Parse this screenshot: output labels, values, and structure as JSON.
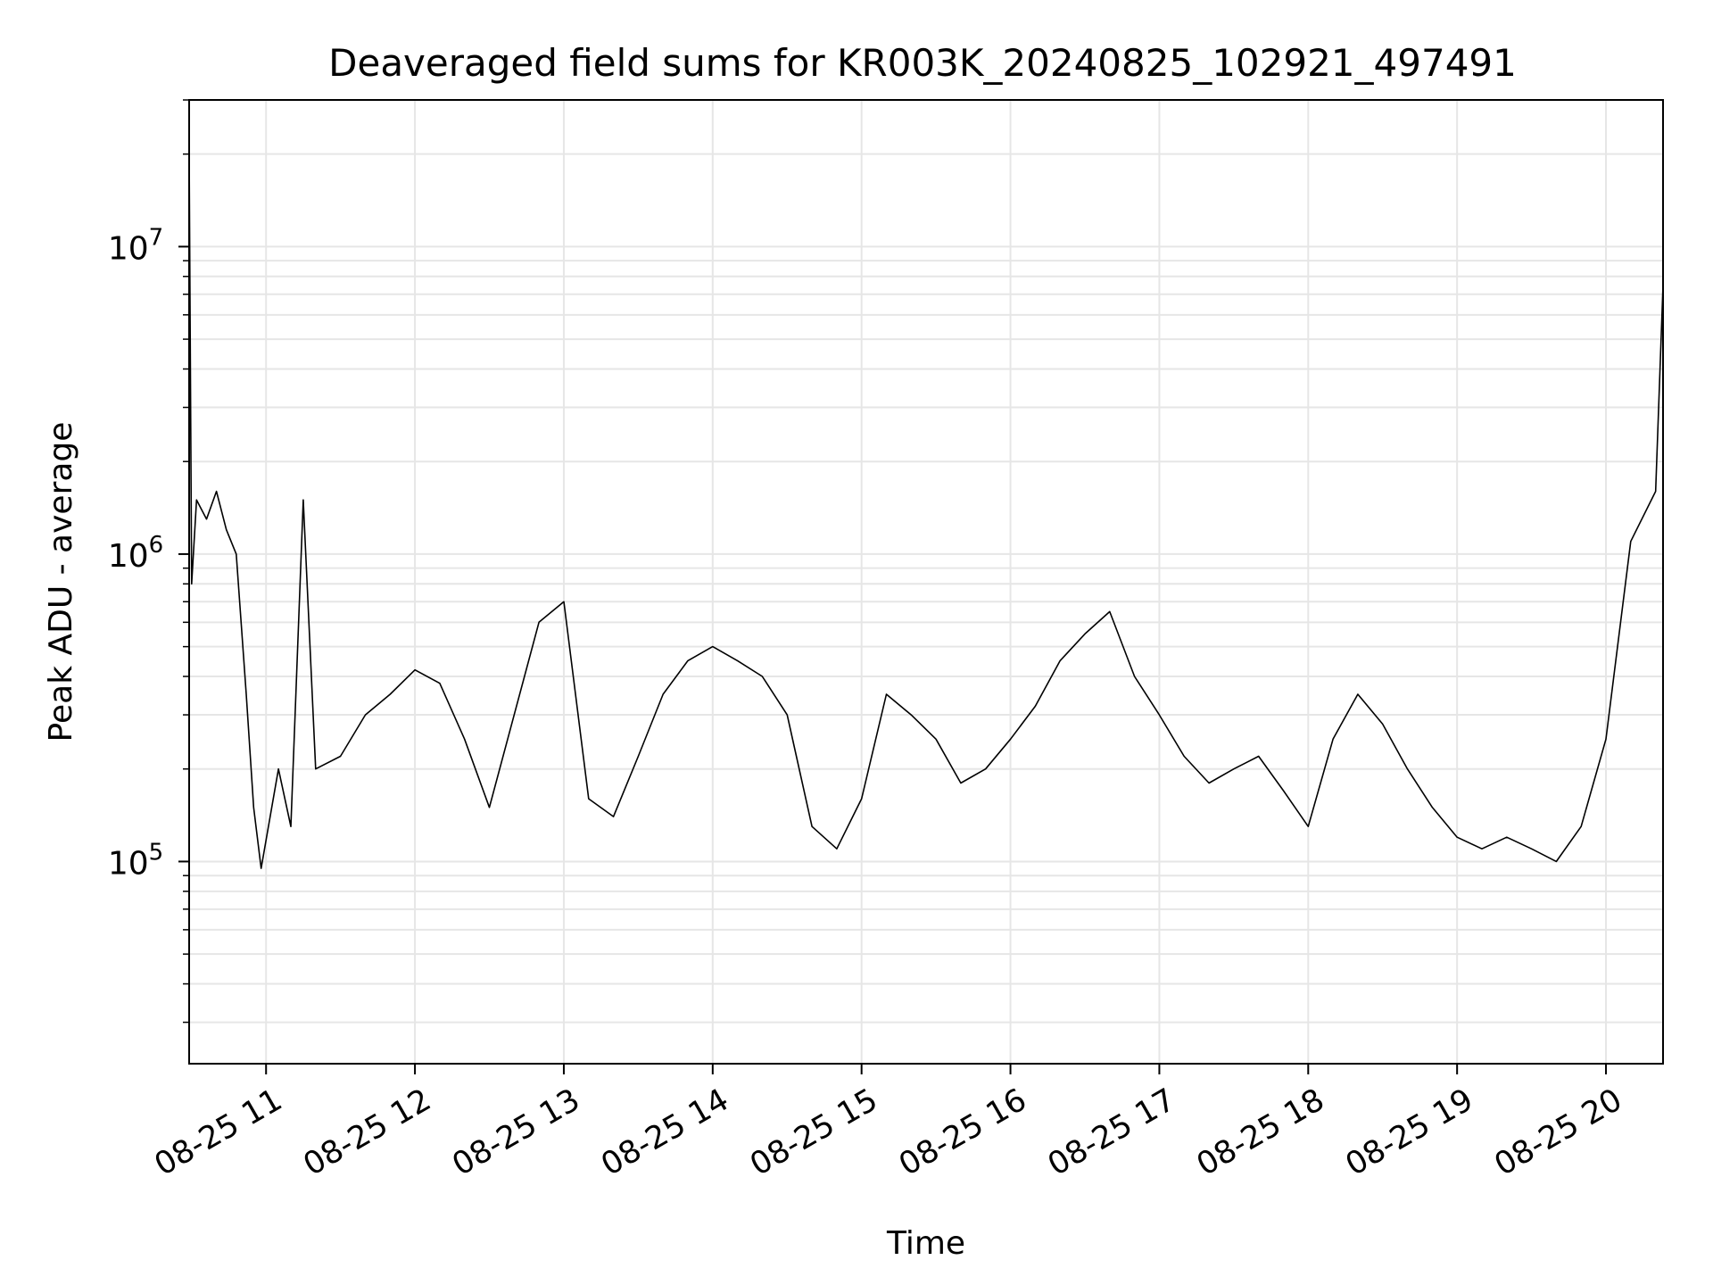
{
  "chart_data": {
    "type": "line",
    "title": "Deaveraged field sums for KR003K_20240825_102921_497491",
    "xlabel": "Time",
    "ylabel": "Peak ADU - average",
    "yscale": "log",
    "xlim": [
      "08-25 10:29",
      "08-25 20:23"
    ],
    "ylim": [
      22000,
      30000000
    ],
    "grid": true,
    "line_color": "#000000",
    "x_ticks": [
      "08-25 11",
      "08-25 12",
      "08-25 13",
      "08-25 14",
      "08-25 15",
      "08-25 16",
      "08-25 17",
      "08-25 18",
      "08-25 19",
      "08-25 20"
    ],
    "y_ticks": [
      {
        "base": "10",
        "exp": "5",
        "value": 100000
      },
      {
        "base": "10",
        "exp": "6",
        "value": 1000000
      },
      {
        "base": "10",
        "exp": "7",
        "value": 10000000
      }
    ],
    "series": [
      {
        "points": [
          [
            "08-25 10:29",
            21000000
          ],
          [
            "08-25 10:30",
            800000
          ],
          [
            "08-25 10:32",
            1500000
          ],
          [
            "08-25 10:36",
            1300000
          ],
          [
            "08-25 10:40",
            1600000
          ],
          [
            "08-25 10:44",
            1200000
          ],
          [
            "08-25 10:48",
            1000000
          ],
          [
            "08-25 10:52",
            350000
          ],
          [
            "08-25 10:55",
            150000
          ],
          [
            "08-25 10:58",
            95000
          ],
          [
            "08-25 11:05",
            200000
          ],
          [
            "08-25 11:10",
            130000
          ],
          [
            "08-25 11:15",
            1500000
          ],
          [
            "08-25 11:20",
            200000
          ],
          [
            "08-25 11:30",
            220000
          ],
          [
            "08-25 11:40",
            300000
          ],
          [
            "08-25 11:50",
            350000
          ],
          [
            "08-25 12:00",
            420000
          ],
          [
            "08-25 12:10",
            380000
          ],
          [
            "08-25 12:20",
            250000
          ],
          [
            "08-25 12:30",
            150000
          ],
          [
            "08-25 12:40",
            300000
          ],
          [
            "08-25 12:50",
            600000
          ],
          [
            "08-25 13:00",
            700000
          ],
          [
            "08-25 13:10",
            160000
          ],
          [
            "08-25 13:20",
            140000
          ],
          [
            "08-25 13:30",
            220000
          ],
          [
            "08-25 13:40",
            350000
          ],
          [
            "08-25 13:50",
            450000
          ],
          [
            "08-25 14:00",
            500000
          ],
          [
            "08-25 14:10",
            450000
          ],
          [
            "08-25 14:20",
            400000
          ],
          [
            "08-25 14:30",
            300000
          ],
          [
            "08-25 14:40",
            130000
          ],
          [
            "08-25 14:50",
            110000
          ],
          [
            "08-25 15:00",
            160000
          ],
          [
            "08-25 15:10",
            350000
          ],
          [
            "08-25 15:20",
            300000
          ],
          [
            "08-25 15:30",
            250000
          ],
          [
            "08-25 15:40",
            180000
          ],
          [
            "08-25 15:50",
            200000
          ],
          [
            "08-25 16:00",
            250000
          ],
          [
            "08-25 16:10",
            320000
          ],
          [
            "08-25 16:20",
            450000
          ],
          [
            "08-25 16:30",
            550000
          ],
          [
            "08-25 16:40",
            650000
          ],
          [
            "08-25 16:50",
            400000
          ],
          [
            "08-25 17:00",
            300000
          ],
          [
            "08-25 17:10",
            220000
          ],
          [
            "08-25 17:20",
            180000
          ],
          [
            "08-25 17:30",
            200000
          ],
          [
            "08-25 17:40",
            220000
          ],
          [
            "08-25 17:50",
            170000
          ],
          [
            "08-25 18:00",
            130000
          ],
          [
            "08-25 18:10",
            250000
          ],
          [
            "08-25 18:20",
            350000
          ],
          [
            "08-25 18:30",
            280000
          ],
          [
            "08-25 18:40",
            200000
          ],
          [
            "08-25 18:50",
            150000
          ],
          [
            "08-25 19:00",
            120000
          ],
          [
            "08-25 19:10",
            110000
          ],
          [
            "08-25 19:20",
            120000
          ],
          [
            "08-25 19:30",
            110000
          ],
          [
            "08-25 19:40",
            100000
          ],
          [
            "08-25 19:50",
            130000
          ],
          [
            "08-25 20:00",
            250000
          ],
          [
            "08-25 20:10",
            1100000
          ],
          [
            "08-25 20:20",
            1600000
          ],
          [
            "08-25 20:23",
            7500000
          ]
        ]
      }
    ]
  }
}
